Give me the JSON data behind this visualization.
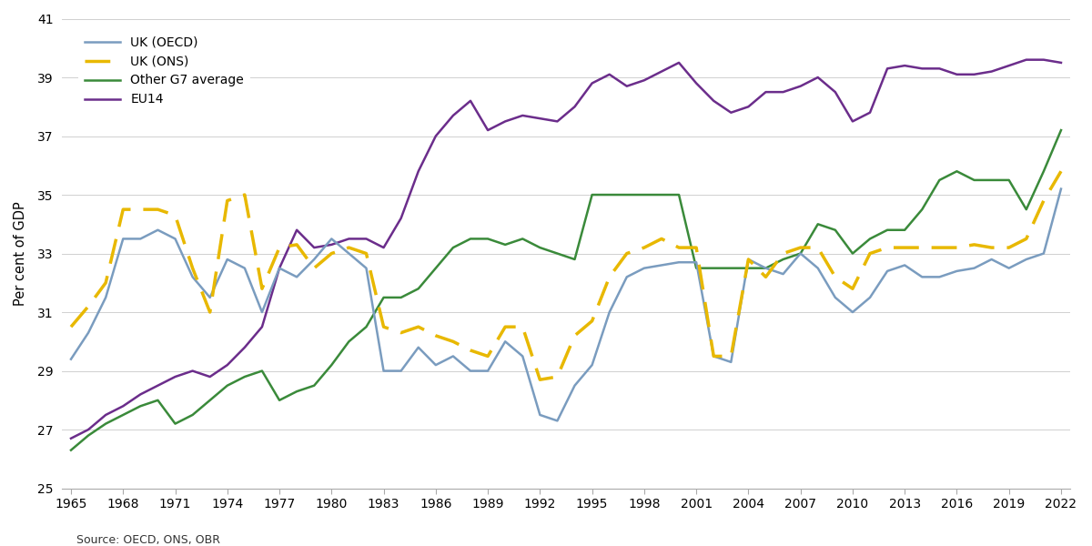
{
  "years": [
    1965,
    1966,
    1967,
    1968,
    1969,
    1970,
    1971,
    1972,
    1973,
    1974,
    1975,
    1976,
    1977,
    1978,
    1979,
    1980,
    1981,
    1982,
    1983,
    1984,
    1985,
    1986,
    1987,
    1988,
    1989,
    1990,
    1991,
    1992,
    1993,
    1994,
    1995,
    1996,
    1997,
    1998,
    1999,
    2000,
    2001,
    2002,
    2003,
    2004,
    2005,
    2006,
    2007,
    2008,
    2009,
    2010,
    2011,
    2012,
    2013,
    2014,
    2015,
    2016,
    2017,
    2018,
    2019,
    2020,
    2021,
    2022
  ],
  "uk_oecd": [
    29.4,
    30.3,
    31.5,
    33.5,
    33.5,
    33.8,
    33.5,
    32.2,
    31.5,
    32.8,
    32.5,
    31.0,
    32.5,
    32.2,
    32.8,
    33.5,
    33.0,
    32.5,
    29.0,
    29.0,
    29.8,
    29.2,
    29.5,
    29.0,
    29.0,
    30.0,
    29.5,
    27.5,
    27.3,
    28.5,
    29.2,
    31.0,
    32.2,
    32.5,
    32.6,
    32.7,
    32.7,
    29.5,
    29.3,
    32.8,
    32.5,
    32.3,
    33.0,
    32.5,
    31.5,
    31.0,
    31.5,
    32.4,
    32.6,
    32.2,
    32.2,
    32.4,
    32.5,
    32.8,
    32.5,
    32.8,
    33.0,
    35.2
  ],
  "uk_ons": [
    30.5,
    31.2,
    32.0,
    34.5,
    34.5,
    34.5,
    34.3,
    32.5,
    31.0,
    34.8,
    35.0,
    31.8,
    33.2,
    33.3,
    32.5,
    33.0,
    33.2,
    33.0,
    30.5,
    30.3,
    30.5,
    30.2,
    30.0,
    29.7,
    29.5,
    30.5,
    30.5,
    28.7,
    28.8,
    30.2,
    30.7,
    32.2,
    33.0,
    33.2,
    33.5,
    33.2,
    33.2,
    29.5,
    29.5,
    32.8,
    32.2,
    33.0,
    33.2,
    33.2,
    32.2,
    31.8,
    33.0,
    33.2,
    33.2,
    33.2,
    33.2,
    33.2,
    33.3,
    33.2,
    33.2,
    33.5,
    34.8,
    35.8
  ],
  "other_g7": [
    26.3,
    26.8,
    27.2,
    27.5,
    27.8,
    28.0,
    27.2,
    27.5,
    28.0,
    28.5,
    28.8,
    29.0,
    28.0,
    28.3,
    28.5,
    29.2,
    30.0,
    30.5,
    31.5,
    31.5,
    31.8,
    32.5,
    33.2,
    33.5,
    33.5,
    33.3,
    33.5,
    33.2,
    33.0,
    32.8,
    35.0,
    35.0,
    35.0,
    35.0,
    35.0,
    35.0,
    32.5,
    32.5,
    32.5,
    32.5,
    32.5,
    32.8,
    33.0,
    34.0,
    33.8,
    33.0,
    33.5,
    33.8,
    33.8,
    34.5,
    35.5,
    35.8,
    35.5,
    35.5,
    35.5,
    34.5,
    35.8,
    37.2
  ],
  "eu14": [
    26.7,
    27.0,
    27.5,
    27.8,
    28.2,
    28.5,
    28.8,
    29.0,
    28.8,
    29.2,
    29.8,
    30.5,
    32.5,
    33.8,
    33.2,
    33.3,
    33.5,
    33.5,
    33.2,
    34.2,
    35.8,
    37.0,
    37.7,
    38.2,
    37.2,
    37.5,
    37.7,
    37.6,
    37.5,
    38.0,
    38.8,
    39.1,
    38.7,
    38.9,
    39.2,
    39.5,
    38.8,
    38.2,
    37.8,
    38.0,
    38.5,
    38.5,
    38.7,
    39.0,
    38.5,
    37.5,
    37.8,
    39.3,
    39.4,
    39.3,
    39.3,
    39.1,
    39.1,
    39.2,
    39.4,
    39.6,
    39.6,
    39.5
  ],
  "colors": {
    "uk_oecd": "#7a9cbf",
    "uk_ons": "#e8b800",
    "other_g7": "#3a8a3a",
    "eu14": "#6b2d8b"
  },
  "ylabel": "Per cent of GDP",
  "ylim": [
    25,
    41
  ],
  "yticks": [
    25,
    27,
    29,
    31,
    33,
    35,
    37,
    39,
    41
  ],
  "xtick_years": [
    1965,
    1968,
    1971,
    1974,
    1977,
    1980,
    1983,
    1986,
    1989,
    1992,
    1995,
    1998,
    2001,
    2004,
    2007,
    2010,
    2013,
    2016,
    2019,
    2022
  ],
  "source_text": "Source: OECD, ONS, OBR",
  "background_color": "#ffffff",
  "grid_color": "#d0d0d0",
  "spine_color": "#aaaaaa"
}
